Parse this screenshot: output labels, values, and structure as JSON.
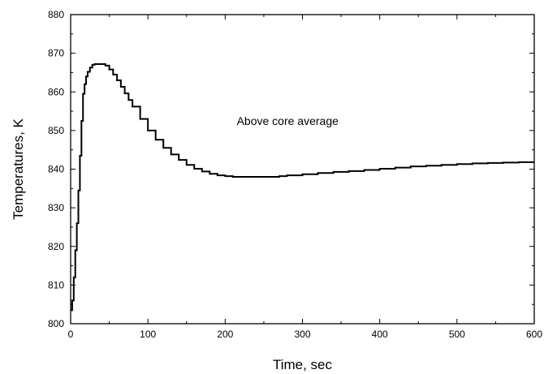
{
  "chart_data": {
    "type": "line",
    "title": "",
    "xlabel": "Time, sec",
    "ylabel": "Temperatures, K",
    "xlim": [
      0,
      600
    ],
    "ylim": [
      800,
      880
    ],
    "xticks": [
      0,
      100,
      200,
      300,
      400,
      500,
      600
    ],
    "yticks": [
      800,
      810,
      820,
      830,
      840,
      850,
      860,
      870,
      880
    ],
    "grid": false,
    "legend": "none",
    "line_color": "#000000",
    "annotations": [
      {
        "text": "Above core average",
        "x": 215,
        "y": 852.5
      }
    ],
    "series": [
      {
        "name": "",
        "x": [
          0,
          2,
          4,
          6,
          8,
          10,
          12,
          14,
          16,
          18,
          20,
          22,
          25,
          28,
          31,
          35,
          40,
          45,
          50,
          55,
          60,
          65,
          70,
          75,
          80,
          90,
          100,
          110,
          120,
          130,
          140,
          150,
          160,
          170,
          180,
          190,
          200,
          210,
          220,
          230,
          240,
          250,
          260,
          270,
          280,
          300,
          320,
          340,
          360,
          380,
          400,
          420,
          440,
          460,
          480,
          500,
          520,
          540,
          560,
          580,
          600
        ],
        "y": [
          803.5,
          806,
          812,
          819,
          826,
          834.5,
          843.5,
          852.5,
          859.5,
          862,
          864,
          865.2,
          866.3,
          867,
          867.2,
          867.2,
          867.2,
          866.8,
          865.8,
          864.5,
          863,
          861.3,
          859.6,
          857.9,
          856.2,
          853,
          850,
          847.6,
          845.5,
          843.8,
          842.4,
          841.1,
          840.1,
          839.4,
          838.8,
          838.4,
          838.2,
          838,
          838,
          838,
          838,
          838,
          838,
          838.2,
          838.4,
          838.7,
          839,
          839.3,
          839.5,
          839.8,
          840.1,
          840.4,
          840.7,
          840.9,
          841.1,
          841.3,
          841.5,
          841.6,
          841.7,
          841.8,
          841.8
        ]
      }
    ]
  }
}
